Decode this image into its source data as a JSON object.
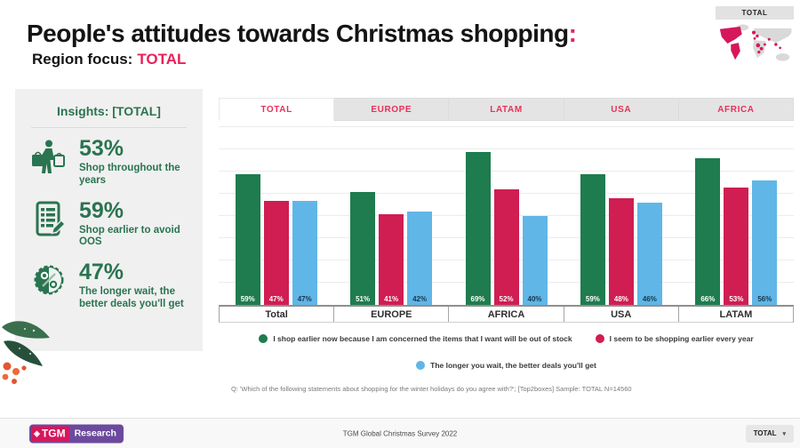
{
  "header": {
    "title": "People's attitudes towards Christmas shopping",
    "title_colon": ":",
    "subtitle_prefix": "Region focus:",
    "subtitle_region": "TOTAL"
  },
  "map_widget": {
    "label": "TOTAL"
  },
  "insights": {
    "title": "Insights: [TOTAL]",
    "items": [
      {
        "icon": "shopper-icon",
        "value": "53%",
        "text": "Shop throughout the years"
      },
      {
        "icon": "checklist-icon",
        "value": "59%",
        "text": "Shop earlier to avoid OOS"
      },
      {
        "icon": "discount-icon",
        "value": "47%",
        "text": "The longer wait, the better deals you'll get"
      }
    ]
  },
  "tabs": [
    {
      "label": "TOTAL",
      "active": true
    },
    {
      "label": "EUROPE",
      "active": false
    },
    {
      "label": "LATAM",
      "active": false
    },
    {
      "label": "USA",
      "active": false
    },
    {
      "label": "AFRICA",
      "active": false
    }
  ],
  "chart_data": {
    "type": "bar",
    "title": "People's attitudes towards Christmas shopping: Region focus TOTAL",
    "categories": [
      "Total",
      "EUROPE",
      "AFRICA",
      "USA",
      "LATAM"
    ],
    "series": [
      {
        "name": "I shop earlier now because I am concerned the items that I want will be out of stock",
        "color": "#1e7c4e",
        "label_color": "#ffffff",
        "values": [
          59,
          51,
          69,
          59,
          66
        ]
      },
      {
        "name": "I seem to be shopping earlier every year",
        "color": "#d01d52",
        "label_color": "#ffffff",
        "values": [
          47,
          41,
          52,
          48,
          53
        ]
      },
      {
        "name": "The longer you wait, the better deals you'll get",
        "color": "#5fb6e7",
        "label_color": "#17374a",
        "values": [
          47,
          42,
          40,
          46,
          56
        ]
      }
    ],
    "value_suffix": "%",
    "ylim": [
      0,
      80
    ],
    "grid": true,
    "grid_step": 10,
    "legend_position": "bottom"
  },
  "footnote": "Q: 'Which of the following statements about shopping for the winter holidays do you agree with?'; [Top2boxes] Sample: TOTAL N=14560",
  "footer": {
    "logo_tgm": "TGM",
    "logo_research": "Research",
    "center_text": "TGM Global Christmas Survey 2022",
    "region_select": "TOTAL"
  },
  "colors": {
    "accent_pink": "#e8215a",
    "tab_text": "#e8315c",
    "insights_green": "#2a7450",
    "panel_bg": "#f0f0f0",
    "logo_purple": "#6b4a9e",
    "logo_crimson": "#d6175c"
  }
}
